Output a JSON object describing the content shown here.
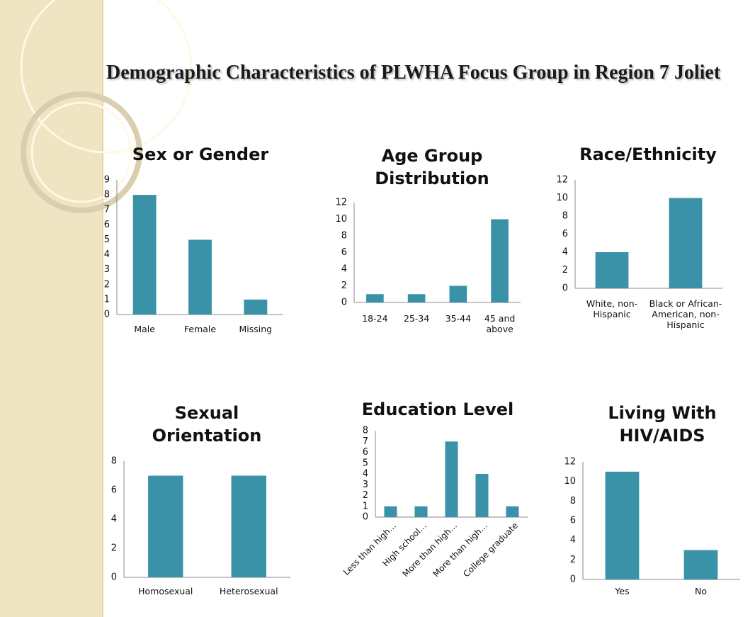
{
  "title": "Demographic Characteristics of PLWHA Focus Group in Region 7 Joliet",
  "chart_data": [
    {
      "type": "bar",
      "title": "Sex or Gender",
      "categories": [
        "Male",
        "Female",
        "Missing"
      ],
      "values": [
        8,
        5,
        1
      ],
      "color": "#3a92a8",
      "ylim": [
        0,
        9
      ],
      "yticks": [
        0,
        1,
        2,
        3,
        4,
        5,
        6,
        7,
        8,
        9
      ],
      "grid": false
    },
    {
      "type": "bar",
      "title": "Age Group Distribution",
      "categories": [
        "18-24",
        "25-34",
        "35-44",
        "45 and above"
      ],
      "values": [
        1,
        1,
        2,
        10
      ],
      "color": "#3a92a8",
      "ylim": [
        0,
        12
      ],
      "yticks": [
        0,
        2,
        4,
        6,
        8,
        10,
        12
      ],
      "grid": false
    },
    {
      "type": "bar",
      "title": "Race/Ethnicity",
      "categories": [
        "White, non-Hispanic",
        "Black or African-American, non-Hispanic"
      ],
      "values": [
        4,
        10
      ],
      "color": "#3a92a8",
      "ylim": [
        0,
        12
      ],
      "yticks": [
        0,
        2,
        4,
        6,
        8,
        10,
        12
      ],
      "grid": false
    },
    {
      "type": "bar",
      "title": "Sexual Orientation",
      "categories": [
        "Homosexual",
        "Heterosexual"
      ],
      "values": [
        7,
        7
      ],
      "color": "#3a92a8",
      "ylim": [
        0,
        8
      ],
      "yticks": [
        0,
        2,
        4,
        6,
        8
      ],
      "grid": false
    },
    {
      "type": "bar",
      "title": "Education Level",
      "categories": [
        "Less than high…",
        "High school…",
        "More than high…",
        "More than high…",
        "College graduate"
      ],
      "values": [
        1,
        1,
        7,
        4,
        1
      ],
      "color": "#3a92a8",
      "ylim": [
        0,
        8
      ],
      "yticks": [
        0,
        1,
        2,
        3,
        4,
        5,
        6,
        7,
        8
      ],
      "grid": false
    },
    {
      "type": "bar",
      "title": "Living With HIV/AIDS",
      "categories": [
        "Yes",
        "No"
      ],
      "values": [
        11,
        3
      ],
      "color": "#3a92a8",
      "ylim": [
        0,
        12
      ],
      "yticks": [
        0,
        2,
        4,
        6,
        8,
        10,
        12
      ],
      "grid": false
    }
  ]
}
